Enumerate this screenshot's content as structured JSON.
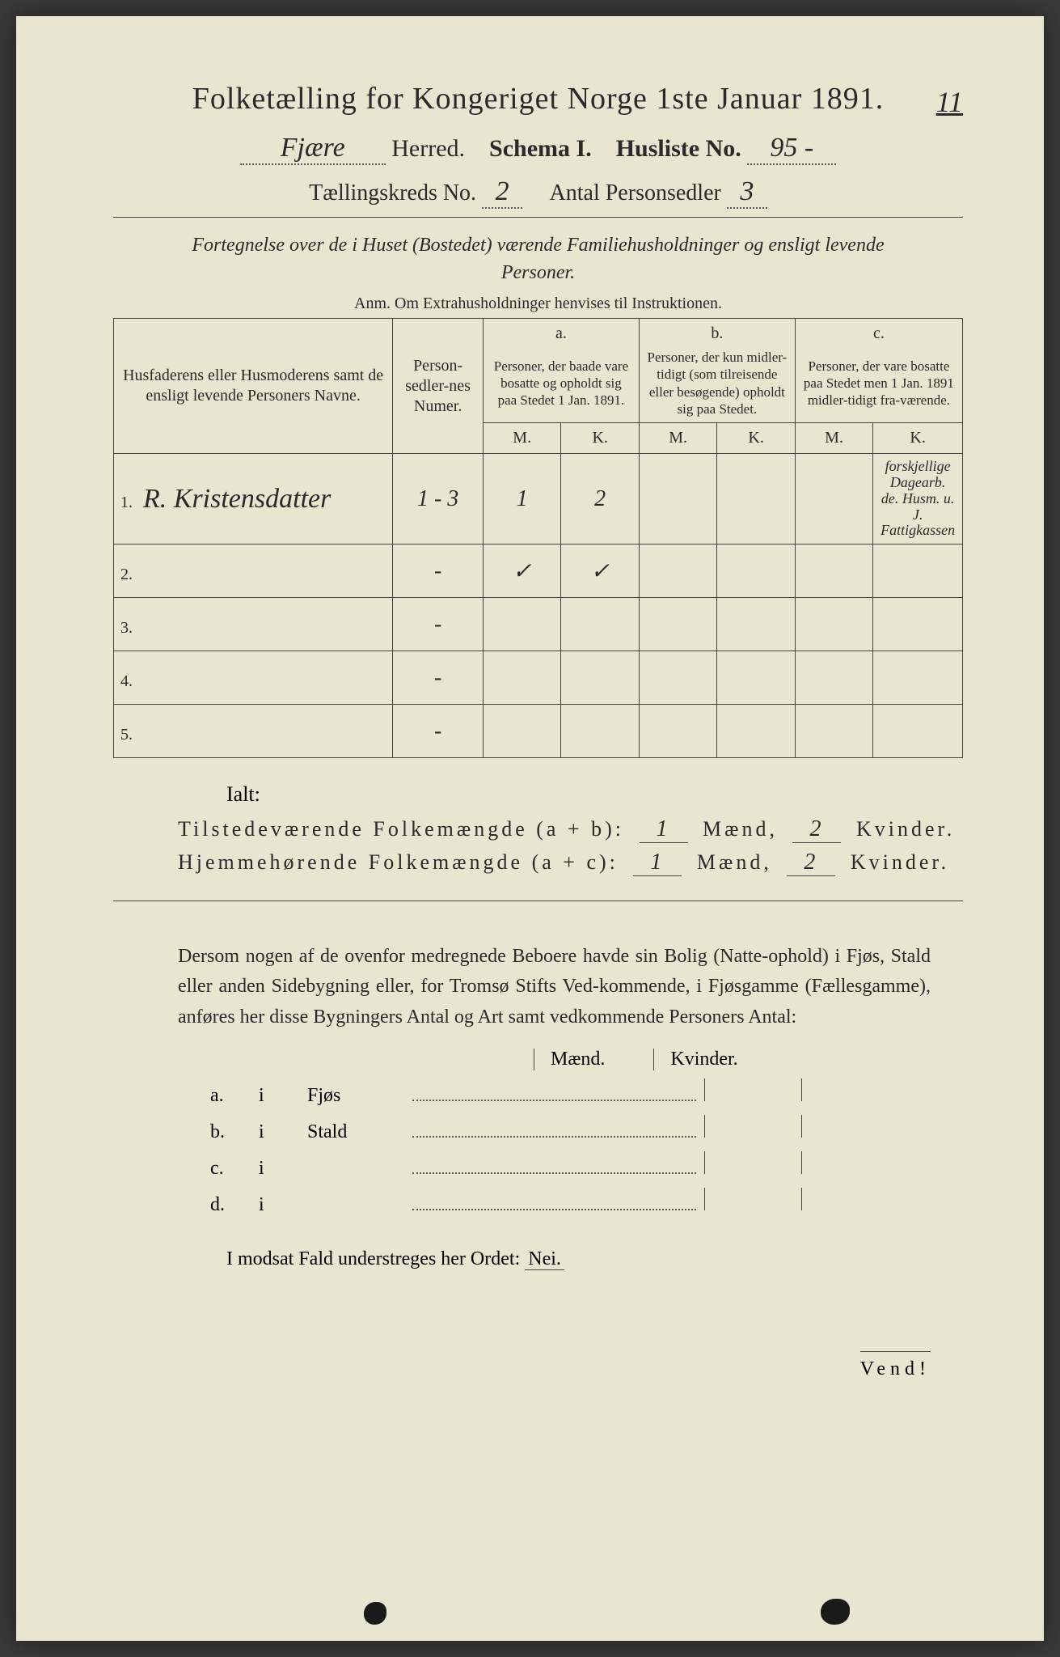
{
  "header": {
    "title": "Folketælling for Kongeriget Norge 1ste Januar 1891.",
    "herred_hw": "Fjære",
    "herred_label": "Herred.",
    "schema_label": "Schema I.",
    "husliste_label": "Husliste No.",
    "husliste_hw": "95 -",
    "kreds_label": "Tællingskreds No.",
    "kreds_hw": "2",
    "antal_label": "Antal Personsedler",
    "antal_hw": "3",
    "top_right": "11"
  },
  "intro": {
    "line1": "Fortegnelse over de i Huset (Bostedet) værende Familiehusholdninger og ensligt levende Personer.",
    "anm": "Anm.  Om Extrahusholdninger henvises til Instruktionen."
  },
  "table": {
    "head_name": "Husfaderens eller Husmoderens samt de ensligt levende Personers Navne.",
    "head_num": "Person-sedler-nes Numer.",
    "head_a_top": "a.",
    "head_a": "Personer, der baade vare bosatte og opholdt sig paa Stedet 1 Jan. 1891.",
    "head_b_top": "b.",
    "head_b": "Personer, der kun midler-tidigt (som tilreisende eller besøgende) opholdt sig paa Stedet.",
    "head_c_top": "c.",
    "head_c": "Personer, der vare bosatte paa Stedet men 1 Jan. 1891 midler-tidigt fra-værende.",
    "m": "M.",
    "k": "K.",
    "rows": [
      {
        "n": "1.",
        "name_hw": "R. Kristensdatter",
        "num_hw": "1 - 3",
        "a_m": "1",
        "a_k": "2",
        "note": "forskjellige Dagearb. de. Husm. u. J. Fattigkassen"
      },
      {
        "n": "2.",
        "name_hw": "",
        "num_hw": "-",
        "a_m": "✓",
        "a_k": "✓",
        "note": ""
      },
      {
        "n": "3.",
        "name_hw": "",
        "num_hw": "-",
        "a_m": "",
        "a_k": "",
        "note": ""
      },
      {
        "n": "4.",
        "name_hw": "",
        "num_hw": "-",
        "a_m": "",
        "a_k": "",
        "note": ""
      },
      {
        "n": "5.",
        "name_hw": "",
        "num_hw": "-",
        "a_m": "",
        "a_k": "",
        "note": ""
      }
    ]
  },
  "summary": {
    "ialt": "Ialt:",
    "line1_label": "Tilstedeværende Folkemængde (a + b):",
    "line2_label": "Hjemmehørende Folkemængde (a + c):",
    "maend": "Mænd,",
    "kvinder": "Kvinder.",
    "v1m": "1",
    "v1k": "2",
    "v2m": "1",
    "v2k": "2"
  },
  "para": "Dersom nogen af de ovenfor medregnede Beboere havde sin Bolig (Natte-ophold) i Fjøs, Stald eller anden Sidebygning eller, for Tromsø Stifts Ved-kommende, i Fjøsgamme (Fællesgamme), anføres her disse Bygningers Antal og Art samt vedkommende Personers Antal:",
  "bolig": {
    "head_m": "Mænd.",
    "head_k": "Kvinder.",
    "rows": [
      {
        "a": "a.",
        "b": "i",
        "c": "Fjøs"
      },
      {
        "a": "b.",
        "b": "i",
        "c": "Stald"
      },
      {
        "a": "c.",
        "b": "i",
        "c": ""
      },
      {
        "a": "d.",
        "b": "i",
        "c": ""
      }
    ]
  },
  "modsat": "I modsat Fald understreges her Ordet:",
  "nei": "Nei.",
  "vend": "Vend!"
}
